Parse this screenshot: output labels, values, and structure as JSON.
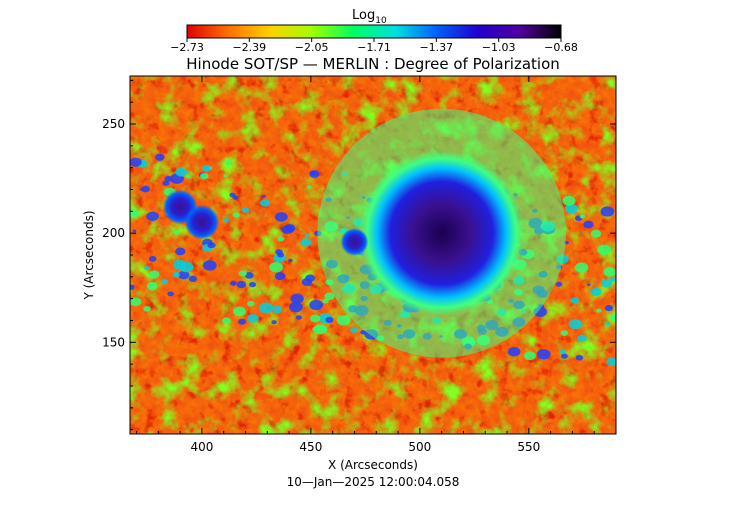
{
  "chart_data": {
    "type": "heatmap",
    "title": "Hinode SOT/SP — MERLIN : Degree of Polarization",
    "xlabel": "X (Arcseconds)",
    "ylabel": "Y (Arcseconds)",
    "timestamp": "10—Jan—2025 12:00:04.058",
    "xlim": [
      367,
      590
    ],
    "ylim": [
      108,
      272
    ],
    "x_ticks": [
      400,
      450,
      500,
      550
    ],
    "y_ticks": [
      150,
      200,
      250
    ],
    "colorbar": {
      "title": "Log",
      "title_subscript": "10",
      "range": [
        -2.73,
        -0.68
      ],
      "ticks": [
        "−2.73",
        "−2.39",
        "−2.05",
        "−1.71",
        "−1.37",
        "−1.03",
        "−0.68"
      ],
      "colors": [
        "#e00000",
        "#ff7000",
        "#ffd000",
        "#a0ff00",
        "#00ff60",
        "#00e0e0",
        "#0060ff",
        "#2000d0",
        "#5000a0",
        "#000000"
      ]
    },
    "features": [
      {
        "name": "sunspot-umbra",
        "x": 510,
        "y": 200,
        "radius": 20,
        "value": -0.8
      },
      {
        "name": "pore-1",
        "x": 390,
        "y": 212,
        "radius": 5,
        "value": -0.95
      },
      {
        "name": "pore-2",
        "x": 400,
        "y": 205,
        "radius": 5,
        "value": -0.95
      },
      {
        "name": "pore-3",
        "x": 470,
        "y": 196,
        "radius": 4,
        "value": -1.0
      }
    ]
  }
}
